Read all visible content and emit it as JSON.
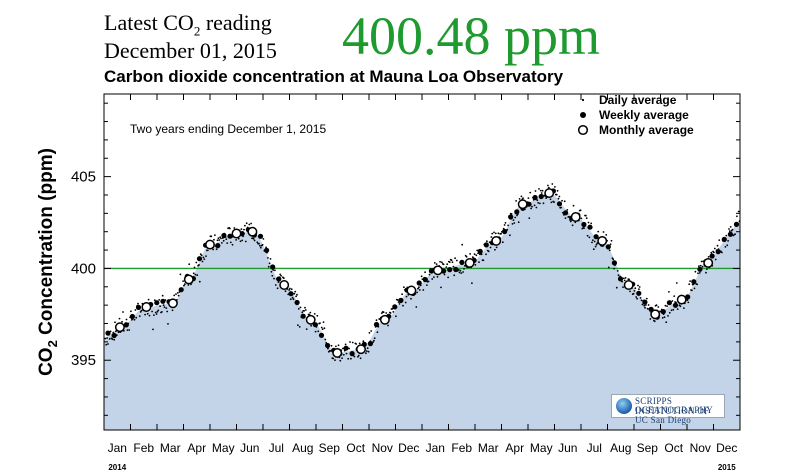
{
  "header": {
    "latest_label_pre": "Latest CO",
    "latest_label_sub": "2",
    "latest_label_post": " reading",
    "latest_date": "December 01, 2015",
    "latest_value": "400.48 ppm",
    "value_color": "#1e9a2e"
  },
  "logo": {
    "line1": "SCRIPPS INSTITUTION OF",
    "line2": "OCEANOGRAPHY UC San Diego"
  },
  "chart_data": {
    "type": "scatter",
    "title": "Carbon dioxide concentration at Mauna Loa Observatory",
    "note": "Two years ending December 1, 2015",
    "ylabel_pre": "CO",
    "ylabel_sub": "2",
    "ylabel_post": " Concentration (ppm)",
    "ylim": [
      391.2,
      409.5
    ],
    "yticks": [
      395,
      400,
      405
    ],
    "reference_line": 400,
    "reference_color": "#1e9a2e",
    "fill_color": "#c3d4e8",
    "x_range_months": [
      0,
      24
    ],
    "month_ticks": [
      "Jan",
      "Feb",
      "Mar",
      "Apr",
      "May",
      "Jun",
      "Jul",
      "Aug",
      "Sep",
      "Oct",
      "Nov",
      "Dec",
      "Jan",
      "Feb",
      "Mar",
      "Apr",
      "May",
      "Jun",
      "Jul",
      "Aug",
      "Sep",
      "Oct",
      "Nov",
      "Dec"
    ],
    "year_labels": [
      {
        "label": "2014",
        "month": 1
      },
      {
        "label": "2015",
        "month": 24
      }
    ],
    "legend": {
      "position": "top-right",
      "items": [
        {
          "label": "Daily average",
          "marker": "dot"
        },
        {
          "label": "Weekly average",
          "marker": "filled-circle"
        },
        {
          "label": "Monthly average",
          "marker": "open-circle"
        }
      ]
    },
    "monthly_average": [
      {
        "m": 0.6,
        "v": 396.8
      },
      {
        "m": 1.6,
        "v": 397.9
      },
      {
        "m": 2.6,
        "v": 398.1
      },
      {
        "m": 3.2,
        "v": 399.4
      },
      {
        "m": 4.0,
        "v": 401.3
      },
      {
        "m": 5.0,
        "v": 401.9
      },
      {
        "m": 5.6,
        "v": 402.0
      },
      {
        "m": 6.8,
        "v": 399.1
      },
      {
        "m": 7.8,
        "v": 397.2
      },
      {
        "m": 8.8,
        "v": 395.4
      },
      {
        "m": 9.7,
        "v": 395.6
      },
      {
        "m": 10.6,
        "v": 397.2
      },
      {
        "m": 11.6,
        "v": 398.8
      },
      {
        "m": 12.6,
        "v": 399.9
      },
      {
        "m": 13.8,
        "v": 400.3
      },
      {
        "m": 14.8,
        "v": 401.5
      },
      {
        "m": 15.8,
        "v": 403.5
      },
      {
        "m": 16.8,
        "v": 404.1
      },
      {
        "m": 17.8,
        "v": 402.8
      },
      {
        "m": 18.8,
        "v": 401.5
      },
      {
        "m": 19.8,
        "v": 399.1
      },
      {
        "m": 20.8,
        "v": 397.5
      },
      {
        "m": 21.8,
        "v": 398.3
      },
      {
        "m": 22.8,
        "v": 400.3
      }
    ]
  }
}
